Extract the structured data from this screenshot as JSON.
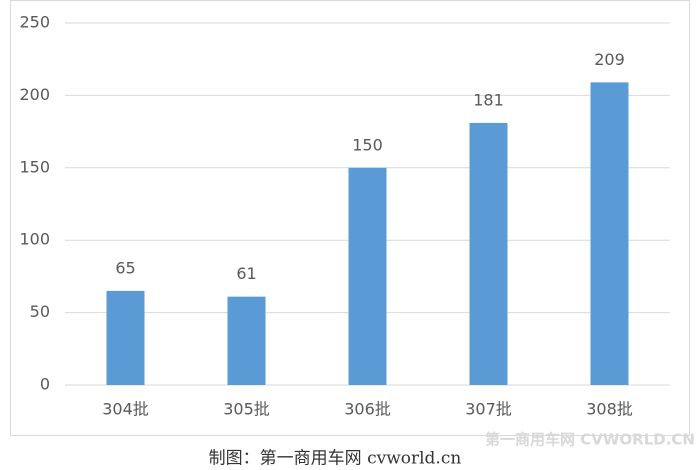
{
  "chart_data": {
    "type": "bar",
    "categories": [
      "304批",
      "305批",
      "306批",
      "307批",
      "308批"
    ],
    "values": [
      65,
      61,
      150,
      181,
      209
    ],
    "color": "#5b9bd5",
    "ylim": [
      0,
      250
    ],
    "yticks": [
      0,
      50,
      100,
      150,
      200,
      250
    ],
    "grid": true,
    "caption": "制图：第一商用车网 cvworld.cn",
    "watermark": "第一商用车网 CVWORLD.CN"
  }
}
